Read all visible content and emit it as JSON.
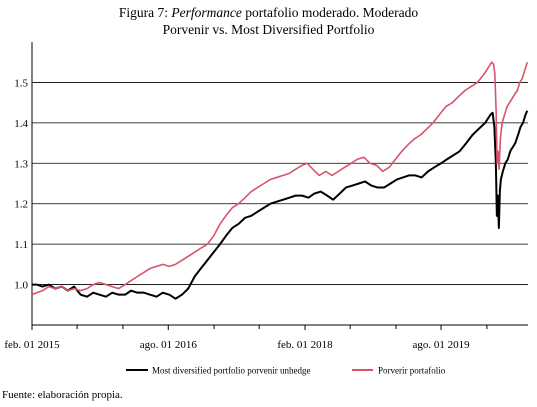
{
  "title": {
    "prefix": "Figura 7: ",
    "italic": "Performance",
    "line1_rest": " portafolio moderado. Moderado",
    "line2": "Porvenir vs. Most Diversified Portfolio"
  },
  "source": "Fuente: elaboración propia.",
  "colors": {
    "mdp": "#000000",
    "porvenir": "#d9536b",
    "axis": "#000000"
  },
  "chart_data": {
    "type": "line",
    "x_axis": {
      "min": "2015-02-01",
      "max": "2020-07-15",
      "tick_labels": [
        {
          "date": "2015-02-01",
          "label": "feb. 01 2015"
        },
        {
          "date": "2016-08-01",
          "label": "ago. 01 2016"
        },
        {
          "date": "2018-02-01",
          "label": "feb. 01 2018"
        },
        {
          "date": "2019-08-01",
          "label": "ago. 01 2019"
        }
      ],
      "minor_ticks": [
        "2015-08-01",
        "2016-02-01",
        "2017-02-01",
        "2017-08-01",
        "2018-08-01",
        "2019-02-01",
        "2020-02-01"
      ]
    },
    "y_axis": {
      "min": 0.9,
      "max": 1.6,
      "ticks": [
        1.0,
        1.1,
        1.2,
        1.3,
        1.4,
        1.5
      ],
      "tick_labels": [
        "1.0",
        "1.1",
        "1.2",
        "1.3",
        "1.4",
        "1.5"
      ]
    },
    "grid": "horizontal",
    "legend_position": "bottom",
    "series": [
      {
        "name": "Most diversified portfolio porvenir unhedge",
        "color_key": "mdp",
        "points": [
          [
            "2015-02-01",
            1.0
          ],
          [
            "2015-02-20",
            1.0
          ],
          [
            "2015-03-15",
            0.995
          ],
          [
            "2015-04-10",
            1.0
          ],
          [
            "2015-05-05",
            0.99
          ],
          [
            "2015-06-01",
            0.995
          ],
          [
            "2015-06-25",
            0.985
          ],
          [
            "2015-07-20",
            0.995
          ],
          [
            "2015-08-15",
            0.975
          ],
          [
            "2015-09-10",
            0.97
          ],
          [
            "2015-10-05",
            0.98
          ],
          [
            "2015-10-30",
            0.975
          ],
          [
            "2015-11-25",
            0.97
          ],
          [
            "2015-12-20",
            0.98
          ],
          [
            "2016-01-15",
            0.975
          ],
          [
            "2016-02-10",
            0.975
          ],
          [
            "2016-03-05",
            0.985
          ],
          [
            "2016-03-30",
            0.98
          ],
          [
            "2016-04-25",
            0.98
          ],
          [
            "2016-05-20",
            0.975
          ],
          [
            "2016-06-15",
            0.97
          ],
          [
            "2016-07-10",
            0.98
          ],
          [
            "2016-08-05",
            0.975
          ],
          [
            "2016-08-30",
            0.965
          ],
          [
            "2016-09-25",
            0.975
          ],
          [
            "2016-10-20",
            0.99
          ],
          [
            "2016-11-15",
            1.02
          ],
          [
            "2016-12-10",
            1.04
          ],
          [
            "2017-01-05",
            1.06
          ],
          [
            "2017-01-30",
            1.08
          ],
          [
            "2017-02-25",
            1.1
          ],
          [
            "2017-03-20",
            1.12
          ],
          [
            "2017-04-15",
            1.14
          ],
          [
            "2017-05-10",
            1.15
          ],
          [
            "2017-06-05",
            1.165
          ],
          [
            "2017-06-30",
            1.17
          ],
          [
            "2017-07-25",
            1.18
          ],
          [
            "2017-08-20",
            1.19
          ],
          [
            "2017-09-15",
            1.2
          ],
          [
            "2017-10-10",
            1.205
          ],
          [
            "2017-11-05",
            1.21
          ],
          [
            "2017-11-30",
            1.215
          ],
          [
            "2017-12-25",
            1.22
          ],
          [
            "2018-01-20",
            1.22
          ],
          [
            "2018-02-15",
            1.215
          ],
          [
            "2018-03-10",
            1.225
          ],
          [
            "2018-04-05",
            1.23
          ],
          [
            "2018-05-01",
            1.22
          ],
          [
            "2018-05-25",
            1.21
          ],
          [
            "2018-06-20",
            1.225
          ],
          [
            "2018-07-15",
            1.24
          ],
          [
            "2018-08-10",
            1.245
          ],
          [
            "2018-09-05",
            1.25
          ],
          [
            "2018-09-30",
            1.255
          ],
          [
            "2018-10-25",
            1.245
          ],
          [
            "2018-11-20",
            1.24
          ],
          [
            "2018-12-15",
            1.24
          ],
          [
            "2019-01-10",
            1.25
          ],
          [
            "2019-02-05",
            1.26
          ],
          [
            "2019-03-01",
            1.265
          ],
          [
            "2019-03-25",
            1.27
          ],
          [
            "2019-04-20",
            1.27
          ],
          [
            "2019-05-15",
            1.265
          ],
          [
            "2019-06-10",
            1.28
          ],
          [
            "2019-07-05",
            1.29
          ],
          [
            "2019-08-01",
            1.3
          ],
          [
            "2019-08-25",
            1.31
          ],
          [
            "2019-09-20",
            1.32
          ],
          [
            "2019-10-15",
            1.33
          ],
          [
            "2019-11-10",
            1.35
          ],
          [
            "2019-12-05",
            1.37
          ],
          [
            "2019-12-30",
            1.385
          ],
          [
            "2020-01-25",
            1.4
          ],
          [
            "2020-02-15",
            1.42
          ],
          [
            "2020-02-24",
            1.425
          ],
          [
            "2020-03-02",
            1.39
          ],
          [
            "2020-03-08",
            1.3
          ],
          [
            "2020-03-12",
            1.17
          ],
          [
            "2020-03-16",
            1.22
          ],
          [
            "2020-03-20",
            1.14
          ],
          [
            "2020-03-24",
            1.23
          ],
          [
            "2020-03-28",
            1.26
          ],
          [
            "2020-04-05",
            1.28
          ],
          [
            "2020-04-15",
            1.3
          ],
          [
            "2020-04-25",
            1.31
          ],
          [
            "2020-05-05",
            1.33
          ],
          [
            "2020-05-15",
            1.34
          ],
          [
            "2020-05-25",
            1.35
          ],
          [
            "2020-06-05",
            1.37
          ],
          [
            "2020-06-15",
            1.39
          ],
          [
            "2020-06-25",
            1.4
          ],
          [
            "2020-07-05",
            1.42
          ],
          [
            "2020-07-12",
            1.43
          ]
        ]
      },
      {
        "name": "Porverir portafolio",
        "color_key": "porvenir",
        "points": [
          [
            "2015-02-01",
            0.975
          ],
          [
            "2015-02-20",
            0.98
          ],
          [
            "2015-03-15",
            0.985
          ],
          [
            "2015-04-10",
            0.995
          ],
          [
            "2015-05-05",
            0.99
          ],
          [
            "2015-06-01",
            0.995
          ],
          [
            "2015-06-25",
            0.985
          ],
          [
            "2015-07-20",
            0.99
          ],
          [
            "2015-08-15",
            0.985
          ],
          [
            "2015-09-10",
            0.99
          ],
          [
            "2015-10-05",
            1.0
          ],
          [
            "2015-10-30",
            1.005
          ],
          [
            "2015-11-25",
            1.0
          ],
          [
            "2015-12-20",
            0.995
          ],
          [
            "2016-01-15",
            0.99
          ],
          [
            "2016-02-10",
            1.0
          ],
          [
            "2016-03-05",
            1.01
          ],
          [
            "2016-03-30",
            1.02
          ],
          [
            "2016-04-25",
            1.03
          ],
          [
            "2016-05-20",
            1.04
          ],
          [
            "2016-06-15",
            1.045
          ],
          [
            "2016-07-10",
            1.05
          ],
          [
            "2016-08-05",
            1.045
          ],
          [
            "2016-08-30",
            1.05
          ],
          [
            "2016-09-25",
            1.06
          ],
          [
            "2016-10-20",
            1.07
          ],
          [
            "2016-11-15",
            1.08
          ],
          [
            "2016-12-10",
            1.09
          ],
          [
            "2017-01-05",
            1.1
          ],
          [
            "2017-01-30",
            1.12
          ],
          [
            "2017-02-25",
            1.15
          ],
          [
            "2017-03-20",
            1.17
          ],
          [
            "2017-04-15",
            1.19
          ],
          [
            "2017-05-10",
            1.2
          ],
          [
            "2017-06-05",
            1.215
          ],
          [
            "2017-06-30",
            1.23
          ],
          [
            "2017-07-25",
            1.24
          ],
          [
            "2017-08-20",
            1.25
          ],
          [
            "2017-09-15",
            1.26
          ],
          [
            "2017-10-10",
            1.265
          ],
          [
            "2017-11-05",
            1.27
          ],
          [
            "2017-11-30",
            1.275
          ],
          [
            "2017-12-25",
            1.285
          ],
          [
            "2018-01-20",
            1.295
          ],
          [
            "2018-02-10",
            1.3
          ],
          [
            "2018-03-05",
            1.285
          ],
          [
            "2018-03-30",
            1.27
          ],
          [
            "2018-04-25",
            1.28
          ],
          [
            "2018-05-20",
            1.27
          ],
          [
            "2018-06-15",
            1.28
          ],
          [
            "2018-07-10",
            1.29
          ],
          [
            "2018-08-05",
            1.3
          ],
          [
            "2018-08-30",
            1.31
          ],
          [
            "2018-09-25",
            1.315
          ],
          [
            "2018-10-20",
            1.3
          ],
          [
            "2018-11-15",
            1.295
          ],
          [
            "2018-12-10",
            1.28
          ],
          [
            "2019-01-05",
            1.29
          ],
          [
            "2019-01-30",
            1.31
          ],
          [
            "2019-02-25",
            1.33
          ],
          [
            "2019-03-20",
            1.345
          ],
          [
            "2019-04-15",
            1.36
          ],
          [
            "2019-05-10",
            1.37
          ],
          [
            "2019-06-05",
            1.385
          ],
          [
            "2019-06-30",
            1.4
          ],
          [
            "2019-07-25",
            1.42
          ],
          [
            "2019-08-20",
            1.44
          ],
          [
            "2019-09-15",
            1.45
          ],
          [
            "2019-10-10",
            1.465
          ],
          [
            "2019-11-05",
            1.48
          ],
          [
            "2019-11-30",
            1.49
          ],
          [
            "2019-12-25",
            1.5
          ],
          [
            "2020-01-20",
            1.52
          ],
          [
            "2020-02-10",
            1.54
          ],
          [
            "2020-02-20",
            1.55
          ],
          [
            "2020-02-28",
            1.545
          ],
          [
            "2020-03-04",
            1.52
          ],
          [
            "2020-03-09",
            1.43
          ],
          [
            "2020-03-13",
            1.3
          ],
          [
            "2020-03-17",
            1.33
          ],
          [
            "2020-03-21",
            1.285
          ],
          [
            "2020-03-26",
            1.36
          ],
          [
            "2020-04-02",
            1.4
          ],
          [
            "2020-04-12",
            1.42
          ],
          [
            "2020-04-22",
            1.44
          ],
          [
            "2020-05-02",
            1.45
          ],
          [
            "2020-05-12",
            1.46
          ],
          [
            "2020-05-22",
            1.47
          ],
          [
            "2020-06-02",
            1.48
          ],
          [
            "2020-06-12",
            1.5
          ],
          [
            "2020-06-22",
            1.51
          ],
          [
            "2020-07-02",
            1.53
          ],
          [
            "2020-07-12",
            1.55
          ]
        ]
      }
    ]
  }
}
